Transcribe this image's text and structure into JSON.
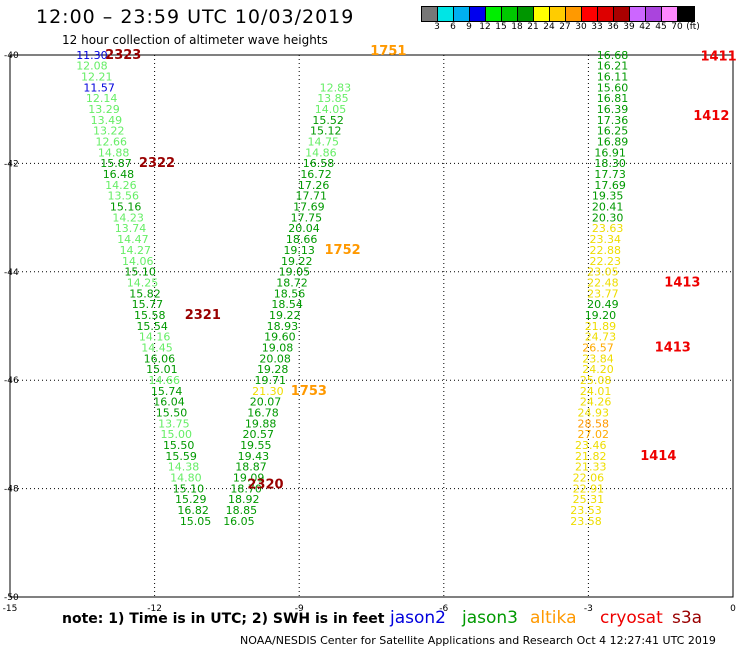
{
  "header": {
    "title": "12:00 – 23:59 UTC 10/03/2019",
    "subtitle": "12 hour collection of altimeter wave heights"
  },
  "colorbar": {
    "colors": [
      "#777777",
      "#00e5e5",
      "#00b0f0",
      "#0000ee",
      "#00ee00",
      "#00c800",
      "#009600",
      "#ffff00",
      "#ffcc00",
      "#ff9900",
      "#ff0000",
      "#dd0000",
      "#aa0000",
      "#cc66ff",
      "#aa44dd",
      "#ff88ff",
      "#000000"
    ],
    "labels": [
      "3",
      "6",
      "9",
      "12",
      "15",
      "18",
      "21",
      "24",
      "27",
      "30",
      "33",
      "36",
      "39",
      "42",
      "45",
      "70",
      "(ft)"
    ]
  },
  "note": "note: 1) Time is in UTC; 2) SWH is in feet",
  "satellites": [
    {
      "name": "jason2",
      "color": "#0000dd"
    },
    {
      "name": "jason3",
      "color": "#009900"
    },
    {
      "name": "altika",
      "color": "#ff9900"
    },
    {
      "name": "cryosat",
      "color": "#ee0000"
    },
    {
      "name": "s3a",
      "color": "#990000"
    }
  ],
  "footer": "NOAA/NESDIS Center for Satellite Applications and Research   Oct  4 12:27:41 UTC 2019",
  "chart_data": {
    "type": "scatter",
    "xlim": [
      -15,
      0
    ],
    "ylim": [
      -50,
      -40
    ],
    "x_ticks": [
      -15,
      -12,
      -9,
      -6,
      -3,
      0
    ],
    "y_ticks": [
      -40,
      -42,
      -44,
      -46,
      -48,
      -50
    ],
    "grid": true,
    "tracks": [
      {
        "id": "A",
        "points": [
          {
            "x": -13.3,
            "y": -40.07,
            "v": "11.30",
            "c": "#0000dd"
          },
          {
            "x": -13.3,
            "y": -40.27,
            "v": "12.08",
            "c": "#66ee66"
          },
          {
            "x": -13.2,
            "y": -40.47,
            "v": "12.21",
            "c": "#66ee66"
          },
          {
            "x": -13.15,
            "y": -40.67,
            "v": "11.57",
            "c": "#0000dd"
          },
          {
            "x": -13.1,
            "y": -40.87,
            "v": "12.14",
            "c": "#66ee66"
          },
          {
            "x": -13.05,
            "y": -41.07,
            "v": "13.29",
            "c": "#66ee66"
          },
          {
            "x": -13.0,
            "y": -41.27,
            "v": "13.49",
            "c": "#66ee66"
          },
          {
            "x": -12.95,
            "y": -41.47,
            "v": "13.22",
            "c": "#66ee66"
          },
          {
            "x": -12.9,
            "y": -41.67,
            "v": "12.66",
            "c": "#66ee66"
          },
          {
            "x": -12.85,
            "y": -41.87,
            "v": "14.88",
            "c": "#66ee66"
          },
          {
            "x": -12.8,
            "y": -42.07,
            "v": "15.87",
            "c": "#009900"
          },
          {
            "x": -12.75,
            "y": -42.27,
            "v": "16.48",
            "c": "#009900"
          },
          {
            "x": -12.7,
            "y": -42.47,
            "v": "14.26",
            "c": "#66ee66"
          },
          {
            "x": -12.65,
            "y": -42.67,
            "v": "13.56",
            "c": "#66ee66"
          },
          {
            "x": -12.6,
            "y": -42.87,
            "v": "15.16",
            "c": "#009900"
          },
          {
            "x": -12.55,
            "y": -43.07,
            "v": "14.23",
            "c": "#66ee66"
          },
          {
            "x": -12.5,
            "y": -43.27,
            "v": "13.74",
            "c": "#66ee66"
          },
          {
            "x": -12.45,
            "y": -43.47,
            "v": "14.47",
            "c": "#66ee66"
          },
          {
            "x": -12.4,
            "y": -43.67,
            "v": "14.27",
            "c": "#66ee66"
          },
          {
            "x": -12.35,
            "y": -43.87,
            "v": "14.06",
            "c": "#66ee66"
          },
          {
            "x": -12.3,
            "y": -44.07,
            "v": "15.10",
            "c": "#009900"
          },
          {
            "x": -12.25,
            "y": -44.27,
            "v": "14.25",
            "c": "#66ee66"
          },
          {
            "x": -12.2,
            "y": -44.47,
            "v": "15.82",
            "c": "#009900"
          },
          {
            "x": -12.15,
            "y": -44.67,
            "v": "15.77",
            "c": "#009900"
          },
          {
            "x": -12.1,
            "y": -44.87,
            "v": "15.58",
            "c": "#009900"
          },
          {
            "x": -12.05,
            "y": -45.07,
            "v": "15.54",
            "c": "#009900"
          },
          {
            "x": -12.0,
            "y": -45.27,
            "v": "14.16",
            "c": "#66ee66"
          },
          {
            "x": -11.95,
            "y": -45.47,
            "v": "14.45",
            "c": "#66ee66"
          },
          {
            "x": -11.9,
            "y": -45.67,
            "v": "16.06",
            "c": "#009900"
          },
          {
            "x": -11.85,
            "y": -45.87,
            "v": "15.01",
            "c": "#009900"
          },
          {
            "x": -11.8,
            "y": -46.07,
            "v": "14.66",
            "c": "#66ee66"
          },
          {
            "x": -11.75,
            "y": -46.27,
            "v": "15.74",
            "c": "#009900"
          },
          {
            "x": -11.7,
            "y": -46.47,
            "v": "16.04",
            "c": "#009900"
          },
          {
            "x": -11.65,
            "y": -46.67,
            "v": "15.50",
            "c": "#009900"
          },
          {
            "x": -11.6,
            "y": -46.87,
            "v": "13.75",
            "c": "#66ee66"
          },
          {
            "x": -11.55,
            "y": -47.07,
            "v": "15.00",
            "c": "#66ee66"
          },
          {
            "x": -11.5,
            "y": -47.27,
            "v": "15.50",
            "c": "#009900"
          },
          {
            "x": -11.45,
            "y": -47.47,
            "v": "15.59",
            "c": "#009900"
          },
          {
            "x": -11.4,
            "y": -47.67,
            "v": "14.38",
            "c": "#66ee66"
          },
          {
            "x": -11.35,
            "y": -47.87,
            "v": "14.80",
            "c": "#66ee66"
          },
          {
            "x": -11.3,
            "y": -48.07,
            "v": "15.10",
            "c": "#009900"
          },
          {
            "x": -11.25,
            "y": -48.27,
            "v": "15.29",
            "c": "#009900"
          },
          {
            "x": -11.2,
            "y": -48.47,
            "v": "16.82",
            "c": "#009900"
          },
          {
            "x": -11.15,
            "y": -48.67,
            "v": "15.05",
            "c": "#009900"
          }
        ]
      },
      {
        "id": "B",
        "points": [
          {
            "x": -10.25,
            "y": -48.67,
            "v": "16.05",
            "c": "#009900"
          },
          {
            "x": -10.2,
            "y": -48.47,
            "v": "18.85",
            "c": "#009900"
          },
          {
            "x": -10.15,
            "y": -48.27,
            "v": "18.92",
            "c": "#009900"
          },
          {
            "x": -10.1,
            "y": -48.07,
            "v": "18.70",
            "c": "#009900"
          },
          {
            "x": -10.05,
            "y": -47.87,
            "v": "19.09",
            "c": "#009900"
          },
          {
            "x": -10.0,
            "y": -47.67,
            "v": "18.87",
            "c": "#009900"
          },
          {
            "x": -9.95,
            "y": -47.47,
            "v": "19.43",
            "c": "#009900"
          },
          {
            "x": -9.9,
            "y": -47.27,
            "v": "19.55",
            "c": "#009900"
          },
          {
            "x": -9.85,
            "y": -47.07,
            "v": "20.57",
            "c": "#009900"
          },
          {
            "x": -9.8,
            "y": -46.87,
            "v": "19.88",
            "c": "#009900"
          },
          {
            "x": -9.75,
            "y": -46.67,
            "v": "16.78",
            "c": "#009900"
          },
          {
            "x": -9.7,
            "y": -46.47,
            "v": "20.07",
            "c": "#009900"
          },
          {
            "x": -9.65,
            "y": -46.27,
            "v": "21.30",
            "c": "#eedd00"
          },
          {
            "x": -9.6,
            "y": -46.07,
            "v": "19.71",
            "c": "#009900"
          },
          {
            "x": -9.55,
            "y": -45.87,
            "v": "19.28",
            "c": "#009900"
          },
          {
            "x": -9.5,
            "y": -45.67,
            "v": "20.08",
            "c": "#009900"
          },
          {
            "x": -9.45,
            "y": -45.47,
            "v": "19.08",
            "c": "#009900"
          },
          {
            "x": -9.4,
            "y": -45.27,
            "v": "19.60",
            "c": "#009900"
          },
          {
            "x": -9.35,
            "y": -45.07,
            "v": "18.93",
            "c": "#009900"
          },
          {
            "x": -9.3,
            "y": -44.87,
            "v": "19.22",
            "c": "#009900"
          },
          {
            "x": -9.25,
            "y": -44.67,
            "v": "18.54",
            "c": "#009900"
          },
          {
            "x": -9.2,
            "y": -44.47,
            "v": "18.56",
            "c": "#009900"
          },
          {
            "x": -9.15,
            "y": -44.27,
            "v": "18.72",
            "c": "#009900"
          },
          {
            "x": -9.1,
            "y": -44.07,
            "v": "19.05",
            "c": "#009900"
          },
          {
            "x": -9.05,
            "y": -43.87,
            "v": "19.22",
            "c": "#009900"
          },
          {
            "x": -9.0,
            "y": -43.67,
            "v": "19.13",
            "c": "#009900"
          },
          {
            "x": -8.95,
            "y": -43.47,
            "v": "18.66",
            "c": "#009900"
          },
          {
            "x": -8.9,
            "y": -43.27,
            "v": "20.04",
            "c": "#009900"
          },
          {
            "x": -8.85,
            "y": -43.07,
            "v": "17.75",
            "c": "#009900"
          },
          {
            "x": -8.8,
            "y": -42.87,
            "v": "17.69",
            "c": "#009900"
          },
          {
            "x": -8.75,
            "y": -42.67,
            "v": "17.71",
            "c": "#009900"
          },
          {
            "x": -8.7,
            "y": -42.47,
            "v": "17.26",
            "c": "#009900"
          },
          {
            "x": -8.65,
            "y": -42.27,
            "v": "16.72",
            "c": "#009900"
          },
          {
            "x": -8.6,
            "y": -42.07,
            "v": "16.58",
            "c": "#009900"
          },
          {
            "x": -8.55,
            "y": -41.87,
            "v": "14.86",
            "c": "#66ee66"
          },
          {
            "x": -8.5,
            "y": -41.67,
            "v": "14.75",
            "c": "#66ee66"
          },
          {
            "x": -8.45,
            "y": -41.47,
            "v": "15.12",
            "c": "#009900"
          },
          {
            "x": -8.4,
            "y": -41.27,
            "v": "15.52",
            "c": "#009900"
          },
          {
            "x": -8.35,
            "y": -41.07,
            "v": "14.05",
            "c": "#66ee66"
          },
          {
            "x": -8.3,
            "y": -40.87,
            "v": "13.85",
            "c": "#66ee66"
          },
          {
            "x": -8.25,
            "y": -40.67,
            "v": "12.83",
            "c": "#66ee66"
          }
        ]
      },
      {
        "id": "C",
        "points": [
          {
            "x": -2.5,
            "y": -40.07,
            "v": "16.68",
            "c": "#009900"
          },
          {
            "x": -2.5,
            "y": -40.27,
            "v": "16.21",
            "c": "#009900"
          },
          {
            "x": -2.5,
            "y": -40.47,
            "v": "16.11",
            "c": "#009900"
          },
          {
            "x": -2.5,
            "y": -40.67,
            "v": "15.60",
            "c": "#009900"
          },
          {
            "x": -2.5,
            "y": -40.87,
            "v": "16.81",
            "c": "#009900"
          },
          {
            "x": -2.5,
            "y": -41.07,
            "v": "16.39",
            "c": "#009900"
          },
          {
            "x": -2.5,
            "y": -41.27,
            "v": "17.36",
            "c": "#009900"
          },
          {
            "x": -2.5,
            "y": -41.47,
            "v": "16.25",
            "c": "#009900"
          },
          {
            "x": -2.5,
            "y": -41.67,
            "v": "16.89",
            "c": "#009900"
          },
          {
            "x": -2.55,
            "y": -41.87,
            "v": "16.91",
            "c": "#009900"
          },
          {
            "x": -2.55,
            "y": -42.07,
            "v": "18.30",
            "c": "#009900"
          },
          {
            "x": -2.55,
            "y": -42.27,
            "v": "17.73",
            "c": "#009900"
          },
          {
            "x": -2.55,
            "y": -42.47,
            "v": "17.69",
            "c": "#009900"
          },
          {
            "x": -2.6,
            "y": -42.67,
            "v": "19.35",
            "c": "#009900"
          },
          {
            "x": -2.6,
            "y": -42.87,
            "v": "20.41",
            "c": "#009900"
          },
          {
            "x": -2.6,
            "y": -43.07,
            "v": "20.30",
            "c": "#009900"
          },
          {
            "x": -2.6,
            "y": -43.27,
            "v": "23.63",
            "c": "#eedd00"
          },
          {
            "x": -2.65,
            "y": -43.47,
            "v": "23.34",
            "c": "#eedd00"
          },
          {
            "x": -2.65,
            "y": -43.67,
            "v": "22.88",
            "c": "#eedd00"
          },
          {
            "x": -2.65,
            "y": -43.87,
            "v": "22.23",
            "c": "#eedd00"
          },
          {
            "x": -2.7,
            "y": -44.07,
            "v": "23.05",
            "c": "#eedd00"
          },
          {
            "x": -2.7,
            "y": -44.27,
            "v": "22.48",
            "c": "#eedd00"
          },
          {
            "x": -2.7,
            "y": -44.47,
            "v": "23.77",
            "c": "#eedd00"
          },
          {
            "x": -2.7,
            "y": -44.67,
            "v": "20.49",
            "c": "#009900"
          },
          {
            "x": -2.75,
            "y": -44.87,
            "v": "19.20",
            "c": "#009900"
          },
          {
            "x": -2.75,
            "y": -45.07,
            "v": "21.89",
            "c": "#eedd00"
          },
          {
            "x": -2.75,
            "y": -45.27,
            "v": "24.73",
            "c": "#eedd00"
          },
          {
            "x": -2.8,
            "y": -45.47,
            "v": "26.57",
            "c": "#ffaa00"
          },
          {
            "x": -2.8,
            "y": -45.67,
            "v": "23.84",
            "c": "#eedd00"
          },
          {
            "x": -2.8,
            "y": -45.87,
            "v": "24.20",
            "c": "#eedd00"
          },
          {
            "x": -2.85,
            "y": -46.07,
            "v": "25.08",
            "c": "#eedd00"
          },
          {
            "x": -2.85,
            "y": -46.27,
            "v": "24.01",
            "c": "#eedd00"
          },
          {
            "x": -2.85,
            "y": -46.47,
            "v": "24.26",
            "c": "#eedd00"
          },
          {
            "x": -2.9,
            "y": -46.67,
            "v": "24.93",
            "c": "#eedd00"
          },
          {
            "x": -2.9,
            "y": -46.87,
            "v": "28.58",
            "c": "#ff9900"
          },
          {
            "x": -2.9,
            "y": -47.07,
            "v": "27.02",
            "c": "#ffaa00"
          },
          {
            "x": -2.95,
            "y": -47.27,
            "v": "23.46",
            "c": "#eedd00"
          },
          {
            "x": -2.95,
            "y": -47.47,
            "v": "21.82",
            "c": "#eedd00"
          },
          {
            "x": -2.95,
            "y": -47.67,
            "v": "21.33",
            "c": "#eedd00"
          },
          {
            "x": -3.0,
            "y": -47.87,
            "v": "22.06",
            "c": "#eedd00"
          },
          {
            "x": -3.0,
            "y": -48.07,
            "v": "22.91",
            "c": "#eedd00"
          },
          {
            "x": -3.0,
            "y": -48.27,
            "v": "25.31",
            "c": "#eedd00"
          },
          {
            "x": -3.05,
            "y": -48.47,
            "v": "23.53",
            "c": "#eedd00"
          },
          {
            "x": -3.05,
            "y": -48.67,
            "v": "23.58",
            "c": "#eedd00"
          }
        ]
      }
    ],
    "time_labels": [
      {
        "x": -12.65,
        "y": -40.07,
        "v": "2323",
        "c": "#990000"
      },
      {
        "x": -11.95,
        "y": -42.07,
        "v": "2322",
        "c": "#990000"
      },
      {
        "x": -11.0,
        "y": -44.87,
        "v": "2321",
        "c": "#990000"
      },
      {
        "x": -9.7,
        "y": -48.0,
        "v": "2320",
        "c": "#990000"
      },
      {
        "x": -7.15,
        "y": -40.0,
        "v": "1751",
        "c": "#ff9900"
      },
      {
        "x": -8.1,
        "y": -43.67,
        "v": "1752",
        "c": "#ff9900"
      },
      {
        "x": -8.8,
        "y": -46.27,
        "v": "1753",
        "c": "#ff9900"
      },
      {
        "x": -0.3,
        "y": -40.1,
        "v": "1411",
        "c": "#ee0000"
      },
      {
        "x": -0.45,
        "y": -41.2,
        "v": "1412",
        "c": "#ee0000"
      },
      {
        "x": -1.05,
        "y": -44.27,
        "v": "1413",
        "c": "#ee0000"
      },
      {
        "x": -1.25,
        "y": -45.47,
        "v": "1413",
        "c": "#ee0000"
      },
      {
        "x": -1.55,
        "y": -47.47,
        "v": "1414",
        "c": "#ee0000"
      }
    ]
  }
}
